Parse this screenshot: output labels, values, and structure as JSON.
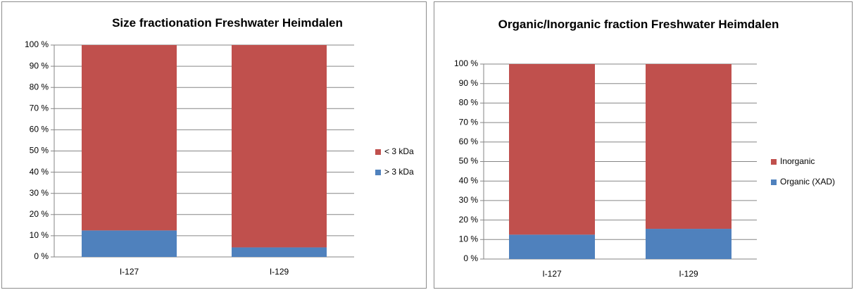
{
  "chart_data": [
    {
      "type": "stacked_bar",
      "title": "Size fractionation  Freshwater Heimdalen",
      "categories": [
        "I-127",
        "I-129"
      ],
      "series": [
        {
          "name": "> 3 kDa",
          "color": "#4f81bd",
          "values": [
            12.5,
            4.5
          ]
        },
        {
          "name": "< 3 kDa",
          "color": "#c0504d",
          "values": [
            87.5,
            95.5
          ]
        }
      ],
      "ylim": [
        0,
        100
      ],
      "yticks": [
        {
          "value": 0,
          "label": "0 %"
        },
        {
          "value": 10,
          "label": "10 %"
        },
        {
          "value": 20,
          "label": "20 %"
        },
        {
          "value": 30,
          "label": "30 %"
        },
        {
          "value": 40,
          "label": "40 %"
        },
        {
          "value": 50,
          "label": "50 %"
        },
        {
          "value": 60,
          "label": "60 %"
        },
        {
          "value": 70,
          "label": "70 %"
        },
        {
          "value": 80,
          "label": "80 %"
        },
        {
          "value": 90,
          "label": "90 %"
        },
        {
          "value": 100,
          "label": "100 %"
        }
      ],
      "grid": true,
      "legend": "right"
    },
    {
      "type": "stacked_bar",
      "title": "Organic/Inorganic fraction Freshwater Heimdalen",
      "categories": [
        "I-127",
        "I-129"
      ],
      "series": [
        {
          "name": "Organic (XAD)",
          "color": "#4f81bd",
          "values": [
            12.5,
            15.5
          ]
        },
        {
          "name": "Inorganic",
          "color": "#c0504d",
          "values": [
            87.5,
            84.5
          ]
        }
      ],
      "ylim": [
        0,
        100
      ],
      "yticks": [
        {
          "value": 0,
          "label": "0 %"
        },
        {
          "value": 10,
          "label": "10 %"
        },
        {
          "value": 20,
          "label": "20 %"
        },
        {
          "value": 30,
          "label": "30 %"
        },
        {
          "value": 40,
          "label": "40 %"
        },
        {
          "value": 50,
          "label": "50 %"
        },
        {
          "value": 60,
          "label": "60 %"
        },
        {
          "value": 70,
          "label": "70 %"
        },
        {
          "value": 80,
          "label": "80 %"
        },
        {
          "value": 90,
          "label": "90 %"
        },
        {
          "value": 100,
          "label": "100 %"
        }
      ],
      "grid": true,
      "legend": "right"
    }
  ]
}
